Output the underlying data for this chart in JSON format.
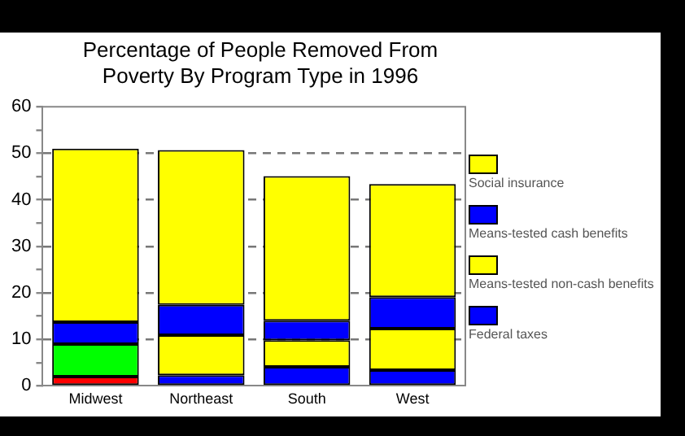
{
  "chart_data": {
    "type": "bar",
    "title": "Percentage of People Removed From Poverty By Program Type in 1996",
    "categories": [
      "Midwest",
      "Northeast",
      "South",
      "West"
    ],
    "stacked": true,
    "series": [
      {
        "name": "Federal taxes",
        "color": "#0000ff",
        "colors": [
          "#ff0000",
          "#0000ff",
          "#0000ff",
          "#0000ff"
        ],
        "values": [
          2,
          2.3,
          4.1,
          3.4
        ]
      },
      {
        "name": "Means-tested non-cash benefits",
        "color": "#ffff00",
        "colors": [
          "#00ff00",
          "#ffff00",
          "#ffff00",
          "#ffff00"
        ],
        "values": [
          7,
          8.6,
          5.7,
          8.9
        ]
      },
      {
        "name": "Means-tested cash benefits",
        "color": "#0000ff",
        "values": [
          4.7,
          6.5,
          4.2,
          6.8
        ]
      },
      {
        "name": "Social insurance",
        "color": "#ffff00",
        "values": [
          37.3,
          33.3,
          31.1,
          24.3
        ]
      }
    ],
    "ylim": [
      0,
      60
    ],
    "yticks": [
      0,
      {
        "value": 5,
        "label": null
      },
      10,
      {
        "value": 15,
        "label": null
      },
      20,
      {
        "value": 25,
        "label": null
      },
      30,
      {
        "value": 35,
        "label": null
      },
      40,
      {
        "value": 45,
        "label": null
      },
      50,
      {
        "value": 55,
        "label": null
      },
      60
    ],
    "grid": "y",
    "line_style": "dashed",
    "legend": "right"
  }
}
